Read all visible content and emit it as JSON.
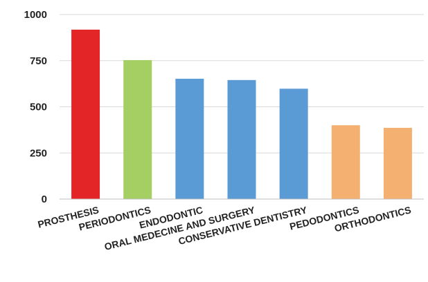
{
  "chart_data": {
    "type": "bar",
    "title": "",
    "xlabel": "",
    "ylabel": "",
    "ylim": [
      0,
      1000
    ],
    "yticks": [
      0,
      250,
      500,
      750,
      1000
    ],
    "ytick_labels": [
      "0",
      "250",
      "500",
      "750",
      "1000"
    ],
    "grid": true,
    "legend": "none",
    "categories": [
      "PROSTHESIS",
      "PERIODONTICS",
      "ENDODONTIC",
      "ORAL MEDECINE AND SURGERY",
      "CONSERVATIVE DENTISTRY",
      "PEDODONTICS",
      "ORTHODONTICS"
    ],
    "values": [
      918,
      753,
      652,
      645,
      598,
      400,
      386
    ],
    "colors": [
      "#e42528",
      "#a6cf63",
      "#5b9bd5",
      "#5b9bd5",
      "#5b9bd5",
      "#f4b071",
      "#f4b071"
    ],
    "grid_color": "#d9d9d9",
    "axis_color": "#bfbfbf"
  }
}
